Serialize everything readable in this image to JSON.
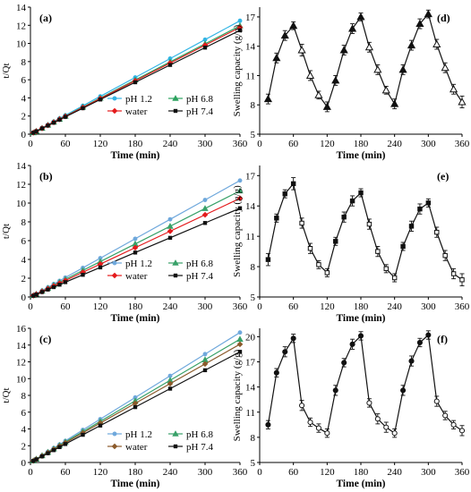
{
  "chart_data": [
    {
      "id": "a",
      "type": "line",
      "panel_label": "(a)",
      "xlabel": "Time (min)",
      "ylabel": "t/Qt",
      "xlim": [
        0,
        360
      ],
      "ylim": [
        0,
        14
      ],
      "xticks": [
        0,
        60,
        120,
        180,
        240,
        300,
        360
      ],
      "yticks": [
        0,
        2,
        4,
        6,
        8,
        10,
        12,
        14
      ],
      "x": [
        5,
        10,
        20,
        30,
        40,
        50,
        60,
        90,
        120,
        180,
        240,
        300,
        360
      ],
      "series": [
        {
          "name": "pH 1.2",
          "color": "#33b5e5",
          "marker": "circle",
          "values": [
            0.17,
            0.35,
            0.69,
            1.04,
            1.39,
            1.74,
            2.08,
            3.13,
            4.17,
            6.25,
            8.33,
            10.42,
            12.5
          ]
        },
        {
          "name": "pH 6.8",
          "color": "#2ca25f",
          "marker": "triangle",
          "values": [
            0.16,
            0.33,
            0.66,
            1.0,
            1.33,
            1.66,
            1.99,
            2.99,
            3.98,
            5.98,
            7.97,
            9.96,
            11.95
          ]
        },
        {
          "name": "water",
          "color": "#e41a1c",
          "marker": "diamond",
          "values": [
            0.16,
            0.33,
            0.65,
            0.98,
            1.31,
            1.64,
            1.96,
            2.94,
            3.92,
            5.88,
            7.84,
            9.81,
            11.77
          ]
        },
        {
          "name": "pH 7.4",
          "color": "#111111",
          "marker": "square",
          "values": [
            0.16,
            0.32,
            0.64,
            0.95,
            1.27,
            1.59,
            1.91,
            2.86,
            3.82,
            5.72,
            7.63,
            9.54,
            11.45
          ]
        }
      ],
      "legend": "bottom-right"
    },
    {
      "id": "b",
      "type": "line",
      "panel_label": "(b)",
      "xlabel": "Time (min)",
      "ylabel": "t/Qt",
      "xlim": [
        0,
        360
      ],
      "ylim": [
        0,
        14
      ],
      "xticks": [
        0,
        60,
        120,
        180,
        240,
        300,
        360
      ],
      "yticks": [
        0,
        2,
        4,
        6,
        8,
        10,
        12,
        14
      ],
      "x": [
        5,
        10,
        20,
        30,
        40,
        50,
        60,
        90,
        120,
        180,
        240,
        300,
        360
      ],
      "series": [
        {
          "name": "pH 1.2",
          "color": "#6fa8dc",
          "marker": "circle",
          "values": [
            0.17,
            0.34,
            0.69,
            1.03,
            1.38,
            1.72,
            2.07,
            3.1,
            4.13,
            6.2,
            8.27,
            10.33,
            12.4
          ]
        },
        {
          "name": "pH 6.8",
          "color": "#38a169",
          "marker": "triangle",
          "values": [
            0.16,
            0.31,
            0.63,
            0.94,
            1.26,
            1.57,
            1.88,
            2.83,
            3.77,
            5.65,
            7.53,
            9.42,
            11.3
          ]
        },
        {
          "name": "water",
          "color": "#e41a1c",
          "marker": "diamond",
          "values": [
            0.15,
            0.29,
            0.58,
            0.87,
            1.17,
            1.46,
            1.75,
            2.63,
            3.5,
            5.25,
            7.0,
            8.75,
            10.5
          ]
        },
        {
          "name": "pH 7.4",
          "color": "#111111",
          "marker": "square",
          "values": [
            0.13,
            0.26,
            0.53,
            0.79,
            1.05,
            1.31,
            1.58,
            2.36,
            3.15,
            4.73,
            6.3,
            7.88,
            9.45
          ]
        }
      ],
      "legend": "bottom-right"
    },
    {
      "id": "c",
      "type": "line",
      "panel_label": "(c)",
      "xlabel": "Time (min)",
      "ylabel": "t/Qt",
      "xlim": [
        0,
        360
      ],
      "ylim": [
        0,
        16
      ],
      "xticks": [
        0,
        60,
        120,
        180,
        240,
        300,
        360
      ],
      "yticks": [
        0,
        2,
        4,
        6,
        8,
        10,
        12,
        14,
        16
      ],
      "x": [
        5,
        10,
        20,
        30,
        40,
        50,
        60,
        90,
        120,
        180,
        240,
        300,
        360
      ],
      "series": [
        {
          "name": "pH 1.2",
          "color": "#6fa8dc",
          "marker": "circle",
          "values": [
            0.22,
            0.43,
            0.86,
            1.29,
            1.72,
            2.15,
            2.58,
            3.88,
            5.17,
            7.75,
            10.33,
            12.92,
            15.5
          ]
        },
        {
          "name": "pH 6.8",
          "color": "#38a169",
          "marker": "triangle",
          "values": [
            0.2,
            0.41,
            0.82,
            1.22,
            1.63,
            2.04,
            2.45,
            3.68,
            4.9,
            7.35,
            9.8,
            12.25,
            14.7
          ]
        },
        {
          "name": "water",
          "color": "#8b5a2b",
          "marker": "diamond",
          "values": [
            0.2,
            0.39,
            0.78,
            1.18,
            1.57,
            1.96,
            2.35,
            3.53,
            4.7,
            7.05,
            9.4,
            11.75,
            14.1
          ]
        },
        {
          "name": "pH 7.4",
          "color": "#111111",
          "marker": "square",
          "values": [
            0.18,
            0.37,
            0.73,
            1.1,
            1.47,
            1.83,
            2.2,
            3.3,
            4.4,
            6.6,
            8.8,
            11.0,
            13.2
          ]
        }
      ],
      "legend": "bottom-right"
    },
    {
      "id": "d",
      "type": "line",
      "panel_label": "(d)",
      "xlabel": "Time (min)",
      "ylabel": "Swelling capacity (g/g)",
      "xlim": [
        0,
        360
      ],
      "ylim": [
        5,
        18
      ],
      "xticks": [
        0,
        60,
        120,
        180,
        240,
        300,
        360
      ],
      "yticks": [
        5,
        8,
        11,
        14,
        17
      ],
      "marker": "triangle",
      "x": [
        15,
        30,
        45,
        60,
        75,
        90,
        105,
        120,
        135,
        150,
        165,
        180,
        195,
        210,
        225,
        240,
        255,
        270,
        285,
        300,
        315,
        330,
        345,
        360
      ],
      "values": [
        8.6,
        12.8,
        15.1,
        16.1,
        13.6,
        11.0,
        9.0,
        7.8,
        10.5,
        13.6,
        15.8,
        17.0,
        13.9,
        11.6,
        9.5,
        8.1,
        11.6,
        14.1,
        16.3,
        17.3,
        14.2,
        11.8,
        9.6,
        8.3
      ],
      "errors": [
        0.5,
        0.5,
        0.5,
        0.4,
        0.6,
        0.5,
        0.4,
        0.5,
        0.5,
        0.5,
        0.5,
        0.4,
        0.5,
        0.5,
        0.4,
        0.5,
        0.5,
        0.5,
        0.5,
        0.4,
        0.5,
        0.5,
        0.5,
        0.6
      ],
      "filled": [
        true,
        true,
        true,
        true,
        false,
        false,
        false,
        true,
        true,
        true,
        true,
        true,
        false,
        false,
        false,
        true,
        true,
        true,
        true,
        true,
        false,
        false,
        false,
        false
      ]
    },
    {
      "id": "e",
      "type": "line",
      "panel_label": "(e)",
      "xlabel": "Time (min)",
      "ylabel": "Swelling capacity (g/g)",
      "xlim": [
        0,
        360
      ],
      "ylim": [
        5,
        18
      ],
      "xticks": [
        0,
        60,
        120,
        180,
        240,
        300,
        360
      ],
      "yticks": [
        5,
        8,
        11,
        14,
        17
      ],
      "marker": "square",
      "x": [
        15,
        30,
        45,
        60,
        75,
        90,
        105,
        120,
        135,
        150,
        165,
        180,
        195,
        210,
        225,
        240,
        255,
        270,
        285,
        300,
        315,
        330,
        345,
        360
      ],
      "values": [
        8.7,
        12.8,
        15.2,
        16.2,
        12.3,
        9.8,
        8.2,
        7.4,
        10.5,
        12.9,
        14.5,
        15.3,
        12.2,
        9.5,
        7.8,
        6.9,
        10.0,
        12.0,
        13.7,
        14.3,
        11.4,
        9.1,
        7.3,
        6.7
      ],
      "errors": [
        0.6,
        0.4,
        0.4,
        0.6,
        0.5,
        0.5,
        0.4,
        0.4,
        0.4,
        0.5,
        0.5,
        0.4,
        0.5,
        0.5,
        0.4,
        0.4,
        0.4,
        0.5,
        0.5,
        0.4,
        0.5,
        0.5,
        0.5,
        0.6
      ],
      "filled": [
        true,
        true,
        true,
        true,
        false,
        false,
        false,
        false,
        true,
        true,
        true,
        true,
        false,
        false,
        false,
        false,
        true,
        true,
        true,
        true,
        false,
        false,
        false,
        false
      ]
    },
    {
      "id": "f",
      "type": "line",
      "panel_label": "(f)",
      "xlabel": "Time (min)",
      "ylabel": "Swelling capacity (g/g)",
      "xlim": [
        0,
        360
      ],
      "ylim": [
        5,
        21
      ],
      "xticks": [
        0,
        60,
        120,
        180,
        240,
        300,
        360
      ],
      "yticks": [
        5,
        8,
        11,
        14,
        17,
        20
      ],
      "marker": "circle",
      "x": [
        15,
        30,
        45,
        60,
        75,
        90,
        105,
        120,
        135,
        150,
        165,
        180,
        195,
        210,
        225,
        240,
        255,
        270,
        285,
        300,
        315,
        330,
        345,
        360
      ],
      "values": [
        9.5,
        15.7,
        18.2,
        19.8,
        11.8,
        9.8,
        9.1,
        8.5,
        13.6,
        16.9,
        19.1,
        20.1,
        12.1,
        10.2,
        9.2,
        8.5,
        13.6,
        17.1,
        19.3,
        20.2,
        12.3,
        10.6,
        9.5,
        8.8
      ],
      "errors": [
        0.5,
        0.5,
        0.6,
        0.5,
        0.6,
        0.5,
        0.5,
        0.5,
        0.6,
        0.5,
        0.6,
        0.5,
        0.5,
        0.6,
        0.6,
        0.5,
        0.6,
        0.6,
        0.5,
        0.5,
        0.6,
        0.5,
        0.5,
        0.6
      ],
      "filled": [
        true,
        true,
        true,
        true,
        false,
        false,
        false,
        false,
        true,
        true,
        true,
        true,
        false,
        false,
        false,
        false,
        true,
        true,
        true,
        true,
        false,
        false,
        false,
        false
      ]
    }
  ]
}
